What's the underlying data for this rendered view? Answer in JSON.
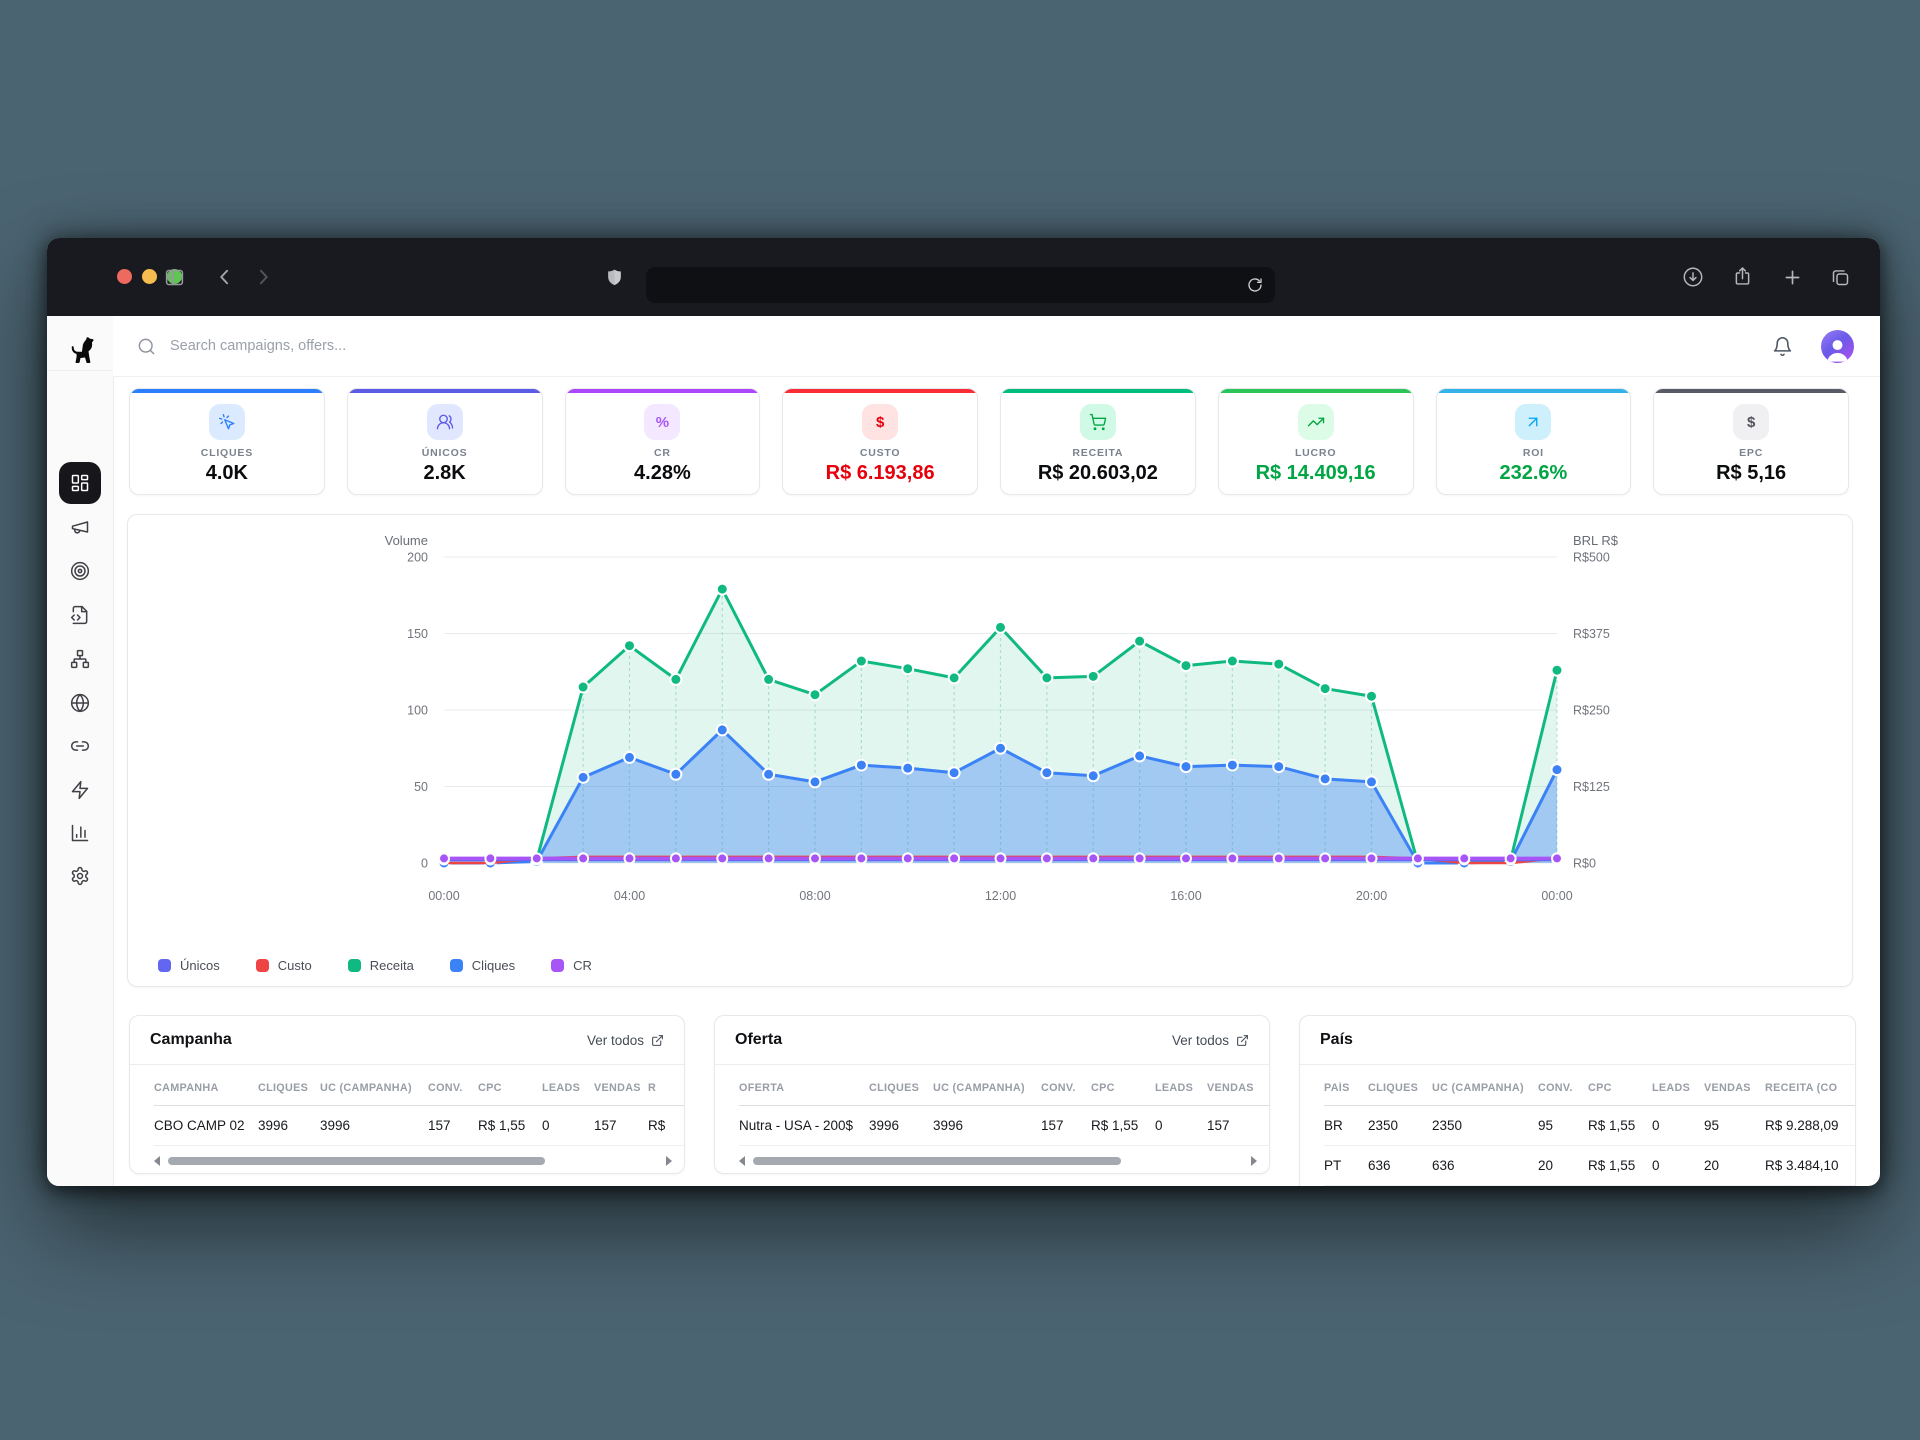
{
  "browser": {
    "url_value": "",
    "traffic_colors": {
      "close": "#ee6a5f",
      "minimize": "#f5bd4f",
      "zoom": "#61c554"
    }
  },
  "header": {
    "search_placeholder": "Search campaigns, offers..."
  },
  "sidebar": {
    "items": [
      {
        "icon": "layout-dashboard",
        "selected": true
      },
      {
        "icon": "megaphone",
        "selected": false
      },
      {
        "icon": "target",
        "selected": false
      },
      {
        "icon": "file-code",
        "selected": false
      },
      {
        "icon": "network",
        "selected": false
      },
      {
        "icon": "globe",
        "selected": false
      },
      {
        "icon": "link",
        "selected": false
      },
      {
        "icon": "zap",
        "selected": false
      },
      {
        "icon": "bar-chart",
        "selected": false
      },
      {
        "icon": "settings",
        "selected": false
      }
    ]
  },
  "kpis": {
    "items": [
      {
        "label": "CLIQUES",
        "value": "4.0K",
        "accent": "#2b7fff",
        "icon": "pointer-click",
        "icon_bg": "#dbeafe",
        "icon_color": "#2b7fff",
        "value_color": "#0b0c0e"
      },
      {
        "label": "ÚNICOS",
        "value": "2.8K",
        "accent": "#5b5be6",
        "icon": "users",
        "icon_bg": "#e0e7ff",
        "icon_color": "#5b5be6",
        "value_color": "#0b0c0e"
      },
      {
        "label": "CR",
        "value": "4.28%",
        "accent": "#ad46ff",
        "icon": "percent",
        "icon_glyph": "%",
        "icon_bg": "#f3e8ff",
        "icon_color": "#a855f7",
        "value_color": "#0b0c0e"
      },
      {
        "label": "CUSTO",
        "value": "R$ 6.193,86",
        "accent": "#fb2c36",
        "icon": "dollar",
        "icon_glyph": "$",
        "icon_bg": "#ffe2e2",
        "icon_color": "#e7000b",
        "value_color": "#e7000b"
      },
      {
        "label": "RECEITA",
        "value": "R$ 20.603,02",
        "accent": "#00bc7d",
        "icon": "shopping-cart",
        "icon_bg": "#d0fae5",
        "icon_color": "#00a63e",
        "value_color": "#0b0c0e"
      },
      {
        "label": "LUCRO",
        "value": "R$ 14.409,16",
        "accent": "#2bc458",
        "icon": "trending-up",
        "icon_bg": "#dcfce7",
        "icon_color": "#00a63e",
        "value_color": "#00a544"
      },
      {
        "label": "ROI",
        "value": "232.6%",
        "accent": "#34b3e8",
        "icon": "arrow-up-right",
        "icon_bg": "#cef0fd",
        "icon_color": "#00a6f4",
        "value_color": "#00a544"
      },
      {
        "label": "EPC",
        "value": "R$ 5,16",
        "accent": "#565b65",
        "icon": "dollar",
        "icon_glyph": "$",
        "icon_bg": "#f0f0f2",
        "icon_color": "#52525b",
        "value_color": "#0b0c0e"
      }
    ]
  },
  "chart_data": {
    "type": "area",
    "x_labels": [
      "00:00",
      "04:00",
      "08:00",
      "12:00",
      "16:00",
      "20:00",
      "00:00"
    ],
    "left_axis": {
      "title": "Volume",
      "ticks": [
        0,
        50,
        100,
        150,
        200
      ],
      "max": 200
    },
    "right_axis": {
      "title": "BRL R$",
      "ticks": [
        "R$0",
        "R$125",
        "R$250",
        "R$375",
        "R$500"
      ]
    },
    "grid": true,
    "legend_position": "bottom-left",
    "series": [
      {
        "name": "Únicos",
        "color": "#6366f1",
        "stroke_width": 2.5,
        "dots": true,
        "dot_r": 4.5,
        "fill": null,
        "values": [
          2,
          2,
          2,
          2,
          2,
          2,
          2,
          2,
          2,
          2,
          2,
          2,
          2,
          2,
          2,
          2,
          2,
          2,
          2,
          2,
          2,
          2,
          2,
          2,
          2
        ]
      },
      {
        "name": "Custo",
        "color": "#ef4444",
        "stroke_width": 2.5,
        "dots": false,
        "dot_r": 4,
        "fill": null,
        "values": [
          0,
          0,
          3,
          4,
          4,
          4,
          4,
          4,
          4,
          4,
          4,
          4,
          4,
          4,
          4,
          4,
          4,
          4,
          4,
          4,
          4,
          3,
          0,
          0,
          3
        ]
      },
      {
        "name": "Receita",
        "color": "#10b981",
        "stroke_width": 3,
        "dots": true,
        "dot_r": 5.5,
        "fill": "rgba(16,185,129,0.13)",
        "values": [
          0,
          0,
          2,
          115,
          142,
          120,
          179,
          120,
          110,
          132,
          127,
          121,
          154,
          121,
          122,
          145,
          129,
          132,
          130,
          114,
          109,
          0,
          0,
          2,
          126
        ]
      },
      {
        "name": "Cliques",
        "color": "#3b82f6",
        "stroke_width": 3,
        "dots": true,
        "dot_r": 5.5,
        "fill": "rgba(59,130,246,0.38)",
        "values": [
          0,
          0,
          1,
          56,
          69,
          58,
          87,
          58,
          53,
          64,
          62,
          59,
          75,
          59,
          57,
          70,
          63,
          64,
          63,
          55,
          53,
          0,
          0,
          1,
          61
        ]
      },
      {
        "name": "CR",
        "color": "#a855f7",
        "stroke_width": 3.5,
        "dots": true,
        "dot_r": 5,
        "fill": null,
        "values": [
          3,
          3,
          3,
          3,
          3,
          3,
          3,
          3,
          3,
          3,
          3,
          3,
          3,
          3,
          3,
          3,
          3,
          3,
          3,
          3,
          3,
          3,
          3,
          3,
          3
        ]
      }
    ],
    "render_order": [
      "Receita",
      "Cliques",
      "Custo",
      "Únicos",
      "CR"
    ],
    "legend": [
      {
        "label": "Únicos",
        "color": "#6366f1"
      },
      {
        "label": "Custo",
        "color": "#ef4444"
      },
      {
        "label": "Receita",
        "color": "#10b981"
      },
      {
        "label": "Cliques",
        "color": "#3b82f6"
      },
      {
        "label": "CR",
        "color": "#a855f7"
      }
    ]
  },
  "tables": {
    "campanha": {
      "title": "Campanha",
      "link_label": "Ver todos",
      "columns": [
        "CAMPANHA",
        "CLIQUES",
        "UC (CAMPANHA)",
        "CONV.",
        "CPC",
        "LEADS",
        "VENDAS",
        "R"
      ],
      "rows": [
        [
          "CBO CAMP 02",
          "3996",
          "3996",
          "157",
          "R$ 1,55",
          "0",
          "157",
          "R$"
        ]
      ]
    },
    "oferta": {
      "title": "Oferta",
      "link_label": "Ver todos",
      "columns": [
        "OFERTA",
        "CLIQUES",
        "UC (CAMPANHA)",
        "CONV.",
        "CPC",
        "LEADS",
        "VENDAS"
      ],
      "rows": [
        [
          "Nutra - USA - 200$",
          "3996",
          "3996",
          "157",
          "R$ 1,55",
          "0",
          "157"
        ]
      ]
    },
    "pais": {
      "title": "País",
      "columns": [
        "PAÍS",
        "CLIQUES",
        "UC (CAMPANHA)",
        "CONV.",
        "CPC",
        "LEADS",
        "VENDAS",
        "RECEITA (CO"
      ],
      "rows": [
        [
          "BR",
          "2350",
          "2350",
          "95",
          "R$ 1,55",
          "0",
          "95",
          "R$ 9.288,09"
        ],
        [
          "PT",
          "636",
          "636",
          "20",
          "R$ 1,55",
          "0",
          "20",
          "R$ 3.484,10"
        ]
      ]
    }
  }
}
